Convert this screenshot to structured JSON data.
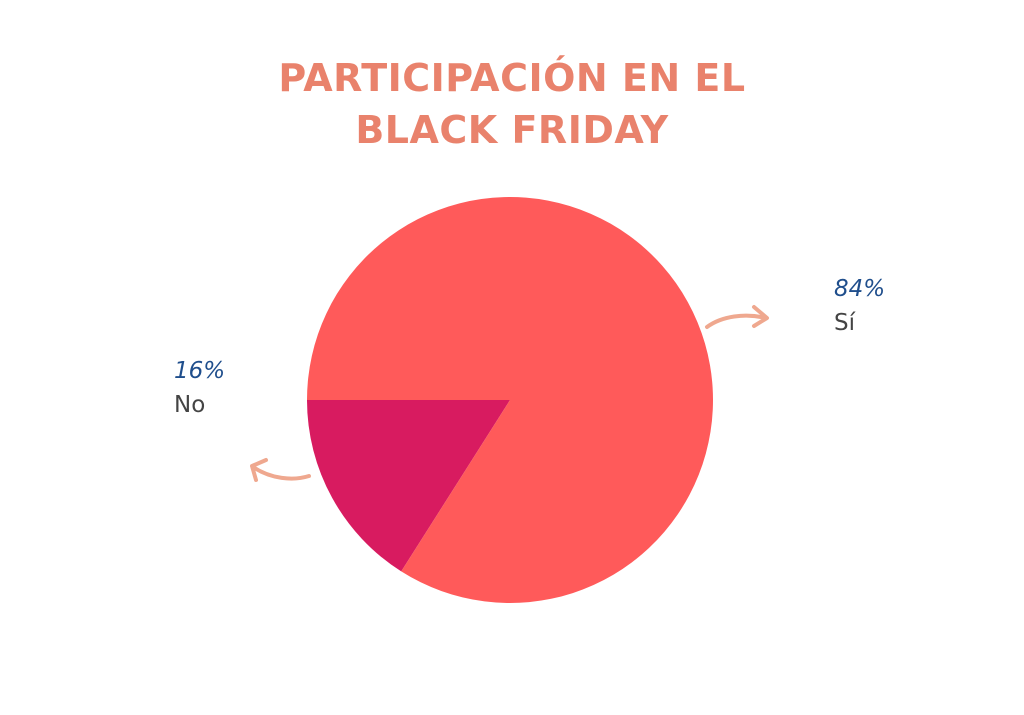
{
  "chart_data": {
    "type": "pie",
    "title_lines": [
      "PARTICIPACIÓN EN EL",
      "BLACK FRIDAY"
    ],
    "slices": [
      {
        "label": "Sí",
        "value": 84,
        "value_label": "84%",
        "color": "#FF5A5A"
      },
      {
        "label": "No",
        "value": 16,
        "value_label": "16%",
        "color": "#D81B60"
      }
    ]
  },
  "colors": {
    "title": "#E9826C",
    "percent": "#1F4E8C",
    "category": "#444444",
    "arrow": "#EFA88F"
  }
}
